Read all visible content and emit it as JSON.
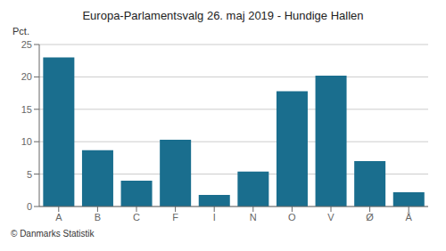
{
  "chart_data": {
    "type": "bar",
    "title": "Europa-Parlamentsvalg 26. maj 2019 - Hundige Hallen",
    "categories": [
      "A",
      "B",
      "C",
      "F",
      "I",
      "N",
      "O",
      "V",
      "Ø",
      "Å"
    ],
    "values": [
      23.0,
      8.7,
      4.0,
      10.3,
      1.8,
      5.4,
      17.8,
      20.2,
      7.0,
      2.2
    ],
    "color": "#1a6e8e",
    "ylabel": "Pct.",
    "ylim": [
      0,
      25
    ],
    "yticks": [
      0,
      5,
      10,
      15,
      20,
      25
    ],
    "grid": true,
    "annotation": "© Danmarks Statistik"
  }
}
